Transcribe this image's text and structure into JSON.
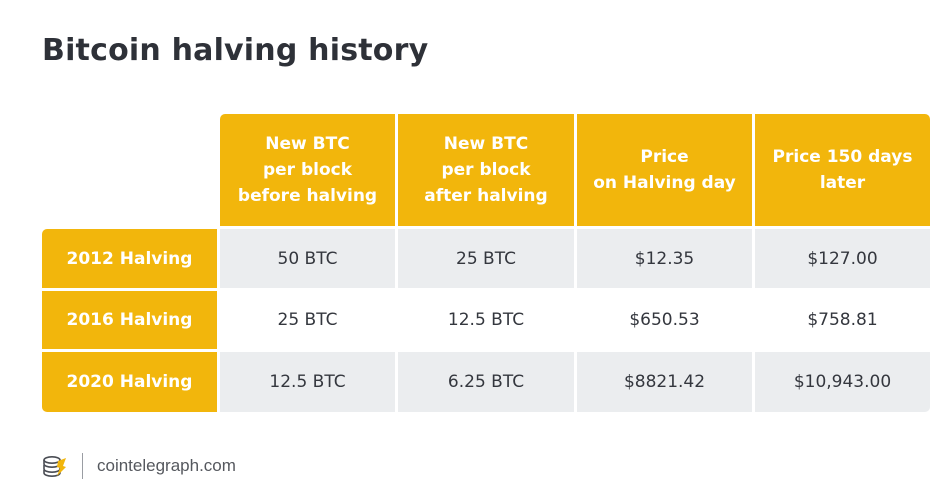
{
  "title": "Bitcoin halving history",
  "table": {
    "columns": [
      "New BTC\nper block\nbefore halving",
      "New BTC\nper block\nafter halving",
      "Price\non Halving day",
      "Price 150 days\nlater"
    ],
    "rows": [
      {
        "label": "2012 Halving",
        "cells": [
          "50 BTC",
          "25 BTC",
          "$12.35",
          "$127.00"
        ]
      },
      {
        "label": "2016 Halving",
        "cells": [
          "25 BTC",
          "12.5 BTC",
          "$650.53",
          "$758.81"
        ]
      },
      {
        "label": "2020 Halving",
        "cells": [
          "12.5 BTC",
          "6.25 BTC",
          "$8821.42",
          "$10,943.00"
        ]
      }
    ]
  },
  "footer": {
    "logo_icon": "cointelegraph-logo-icon",
    "source": "cointelegraph.com"
  },
  "colors": {
    "accent": "#f2b60c",
    "shaded_row": "#ebedef",
    "title": "#2e3138"
  }
}
